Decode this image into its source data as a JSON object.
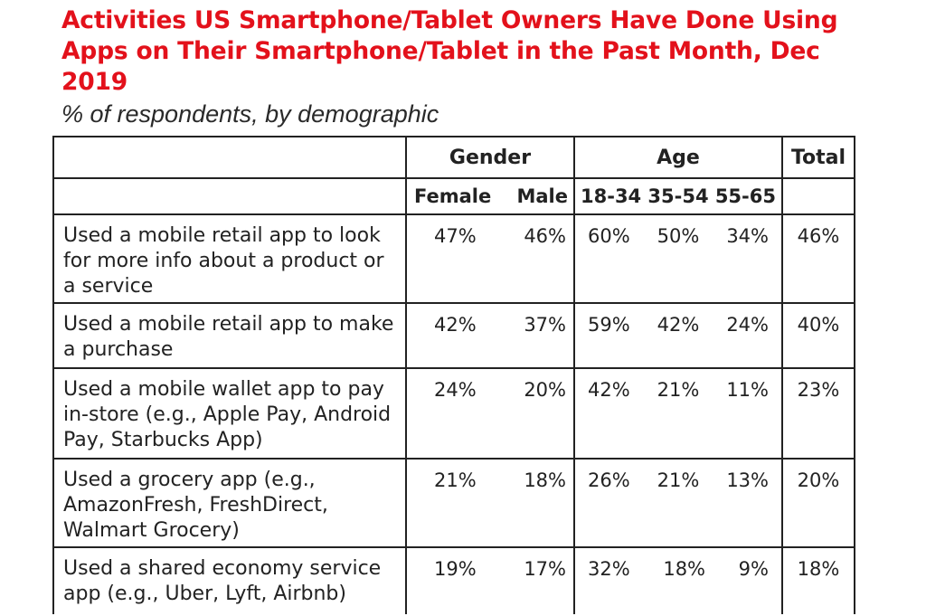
{
  "title": "Activities US Smartphone/Tablet Owners Have Done Using Apps on Their Smartphone/Tablet in the Past Month, Dec 2019",
  "subtitle": "% of respondents, by demographic",
  "chart_data": {
    "type": "table",
    "groups": [
      "Gender",
      "Age",
      "Total"
    ],
    "columns": [
      "Female",
      "Male",
      "18-34",
      "35-54",
      "55-65",
      "Total"
    ],
    "rows": [
      {
        "label": "Used a mobile retail app to look for more info about a product or a service",
        "values": [
          "47%",
          "46%",
          "60%",
          "50%",
          "34%",
          "46%"
        ]
      },
      {
        "label": "Used a mobile retail app to make a purchase",
        "values": [
          "42%",
          "37%",
          "59%",
          "42%",
          "24%",
          "40%"
        ]
      },
      {
        "label": "Used a mobile wallet app to pay in-store (e.g., Apple Pay, Android Pay, Starbucks App)",
        "values": [
          "24%",
          "20%",
          "42%",
          "21%",
          "11%",
          "23%"
        ]
      },
      {
        "label": "Used a grocery app (e.g., AmazonFresh, FreshDirect, Walmart Grocery)",
        "values": [
          "21%",
          "18%",
          "26%",
          "21%",
          "13%",
          "20%"
        ]
      },
      {
        "label": "Used a shared economy service app (e.g., Uber, Lyft, Airbnb)",
        "values": [
          "19%",
          "17%",
          "32%",
          "18%",
          "9%",
          "18%"
        ]
      }
    ]
  }
}
